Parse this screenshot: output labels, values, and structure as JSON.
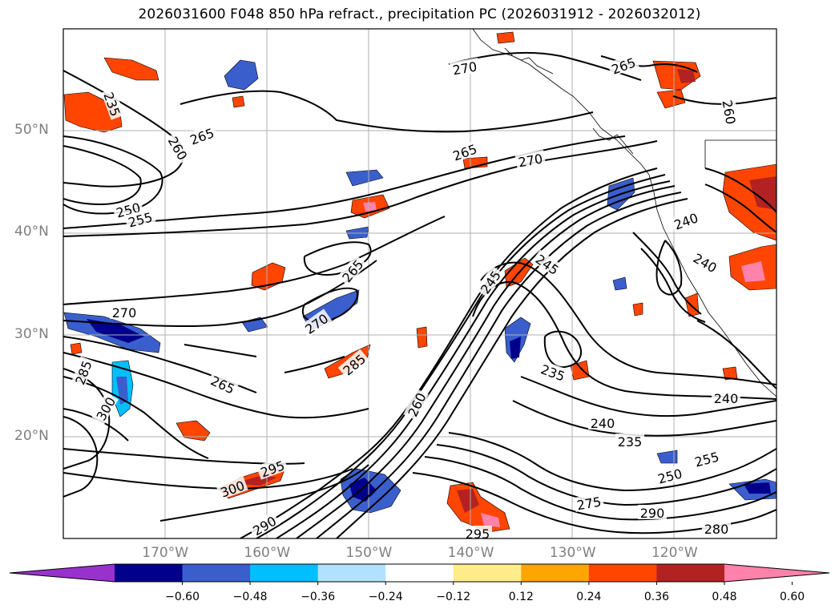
{
  "title": "2026031600 F048 850 hPa refract., precipitation PC (2026031912 - 2026032012)",
  "map": {
    "lat_labels": [
      {
        "text": "50°N",
        "lat": 50
      },
      {
        "text": "40°N",
        "lat": 40
      },
      {
        "text": "30°N",
        "lat": 30
      },
      {
        "text": "20°N",
        "lat": 20
      }
    ],
    "lon_labels": [
      {
        "text": "170°W",
        "lon": -170
      },
      {
        "text": "160°W",
        "lon": -160
      },
      {
        "text": "150°W",
        "lon": -150
      },
      {
        "text": "140°W",
        "lon": -140
      },
      {
        "text": "130°W",
        "lon": -130
      },
      {
        "text": "120°W",
        "lon": -120
      }
    ],
    "contour_labels": [
      {
        "text": "235"
      },
      {
        "text": "265"
      },
      {
        "text": "260"
      },
      {
        "text": "250"
      },
      {
        "text": "255"
      },
      {
        "text": "265"
      },
      {
        "text": "270"
      },
      {
        "text": "265"
      },
      {
        "text": "270"
      },
      {
        "text": "270"
      },
      {
        "text": "270"
      },
      {
        "text": "265"
      },
      {
        "text": "285"
      },
      {
        "text": "300"
      },
      {
        "text": "285"
      },
      {
        "text": "260"
      },
      {
        "text": "245"
      },
      {
        "text": "245"
      },
      {
        "text": "235"
      },
      {
        "text": "240"
      },
      {
        "text": "235"
      },
      {
        "text": "240"
      },
      {
        "text": "250"
      },
      {
        "text": "255"
      },
      {
        "text": "275"
      },
      {
        "text": "290"
      },
      {
        "text": "280"
      },
      {
        "text": "295"
      },
      {
        "text": "300"
      },
      {
        "text": "290"
      },
      {
        "text": "295"
      },
      {
        "text": "240"
      },
      {
        "text": "240"
      },
      {
        "text": "265"
      },
      {
        "text": "260"
      }
    ]
  },
  "colorbar": {
    "colors": [
      "#9932cc",
      "#00008b",
      "#3a5fcd",
      "#00bfff",
      "#b0e2ff",
      "#ffffff",
      "#ffec8b",
      "#ffa500",
      "#ff4500",
      "#b22222",
      "#ff82ab"
    ],
    "tick_labels": [
      "−0.60",
      "−0.48",
      "−0.36",
      "−0.24",
      "−0.12",
      "0.12",
      "0.24",
      "0.36",
      "0.48",
      "0.60"
    ]
  }
}
